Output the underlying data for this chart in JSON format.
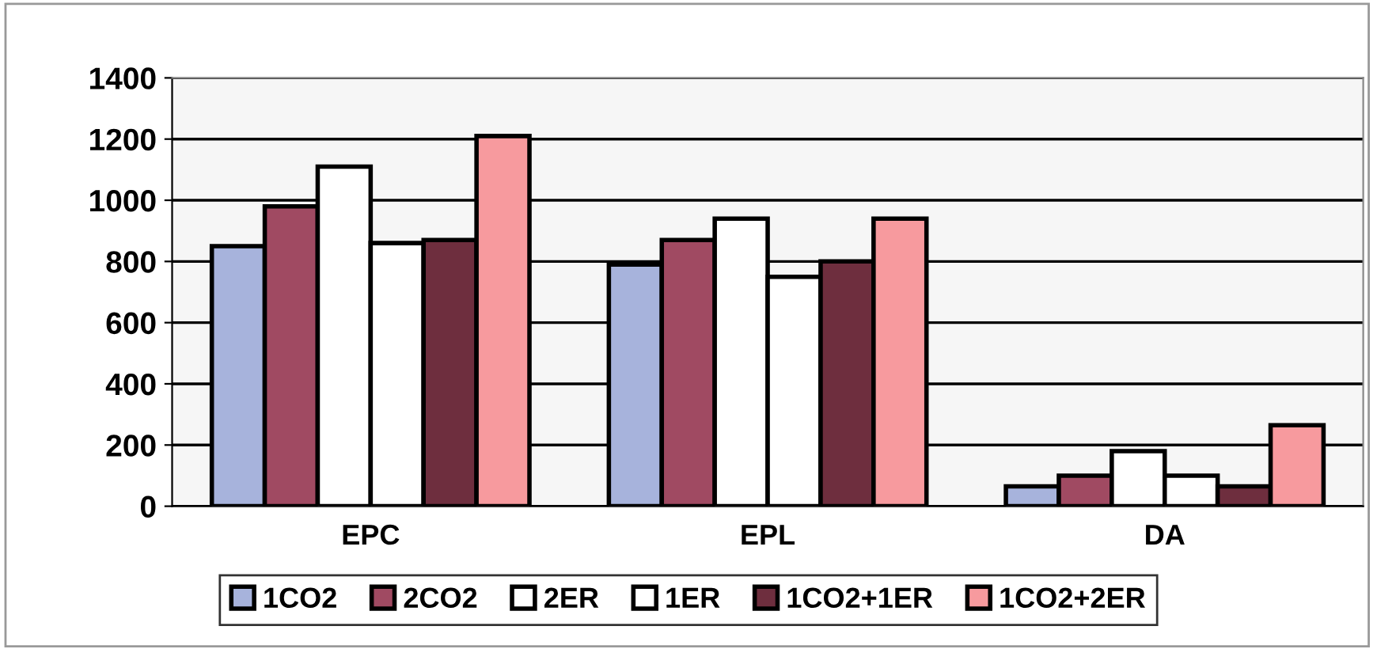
{
  "chart_data": {
    "type": "bar",
    "categories": [
      "EPC",
      "EPL",
      "DA"
    ],
    "series": [
      {
        "name": "1CO2",
        "color": "#a7b3dc",
        "values": [
          850,
          790,
          65
        ]
      },
      {
        "name": "2CO2",
        "color": "#a04a62",
        "values": [
          980,
          870,
          100
        ]
      },
      {
        "name": "2ER",
        "color": "#ffffff",
        "values": [
          1110,
          940,
          180
        ]
      },
      {
        "name": "1ER",
        "color": "#ffffff",
        "values": [
          860,
          750,
          100
        ]
      },
      {
        "name": "1CO2+1ER",
        "color": "#6e2e3e",
        "values": [
          870,
          800,
          65
        ]
      },
      {
        "name": "1CO2+2ER",
        "color": "#f79a9e",
        "values": [
          1210,
          940,
          265
        ]
      }
    ],
    "ylim": [
      0,
      1400
    ],
    "yticks": [
      0,
      200,
      400,
      600,
      800,
      1000,
      1200,
      1400
    ],
    "grid": "y",
    "legend": "bottom"
  }
}
